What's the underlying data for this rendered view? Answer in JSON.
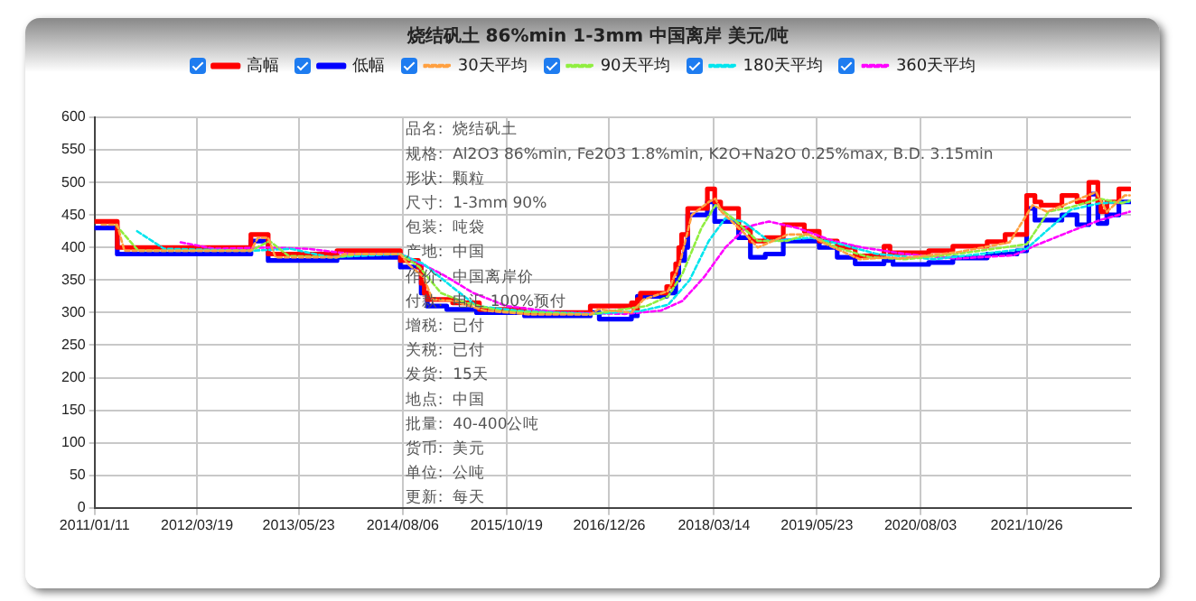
{
  "chart_data": {
    "type": "line",
    "title": "烧结矾土 86%min 1-3mm 中国离岸 美元/吨",
    "xlim": [
      "2011-01-11",
      "2023-01-10"
    ],
    "xticks": [
      {
        "value": "2011-01-11",
        "label": "2011/01/11"
      },
      {
        "value": "2012-03-19",
        "label": "2012/03/19"
      },
      {
        "value": "2013-05-23",
        "label": "2013/05/23"
      },
      {
        "value": "2014-08-06",
        "label": "2014/08/06"
      },
      {
        "value": "2015-10-19",
        "label": "2015/10/19"
      },
      {
        "value": "2016-12-26",
        "label": "2016/12/26"
      },
      {
        "value": "2018-03-14",
        "label": "2018/03/14"
      },
      {
        "value": "2019-05-23",
        "label": "2019/05/23"
      },
      {
        "value": "2020-08-03",
        "label": "2020/08/03"
      },
      {
        "value": "2021-10-26",
        "label": "2021/10/26"
      }
    ],
    "ylim": [
      0,
      600
    ],
    "yticks": [
      0,
      50,
      100,
      150,
      200,
      250,
      300,
      350,
      400,
      450,
      500,
      550,
      600
    ],
    "grid": true,
    "legend": "top",
    "marker": "none",
    "annotations": [
      "品名:  烧结矾土",
      "规格:  Al2O3 86%min, Fe2O3 1.8%min, K2O+Na2O 0.25%max, B.D. 3.15min",
      "形状:  颗粒",
      "尺寸:  1-3mm 90%",
      "包装:  吨袋",
      "产地:  中国",
      "作价:  中国离岸价",
      "付款:  电汇 100%预付",
      "增税:  已付",
      "关税:  已付",
      "发货:  15天",
      "地点:  中国",
      "批量:  40-400公吨",
      "货币:  美元",
      "单位:  公吨",
      "更新:  每天"
    ],
    "series": [
      {
        "name": "高幅",
        "type": "step",
        "color": "#ff0000",
        "line_style": "solid",
        "x": [
          "2011-01-11",
          "2011-04-17",
          "2012-11-02",
          "2013-01-14",
          "2013-11-01",
          "2014-07-27",
          "2014-10-11",
          "2014-10-23",
          "2014-11-05",
          "2014-11-18",
          "2015-03-05",
          "2015-06-26",
          "2016-01-03",
          "2016-10-07",
          "2017-03-30",
          "2017-04-10",
          "2017-04-24",
          "2017-05-07",
          "2017-08-26",
          "2017-09-20",
          "2017-10-03",
          "2017-10-16",
          "2017-10-28",
          "2017-11-23",
          "2018-02-14",
          "2018-03-17",
          "2018-04-11",
          "2018-06-26",
          "2018-08-15",
          "2018-10-17",
          "2019-01-01",
          "2019-03-31",
          "2019-06-02",
          "2019-08-17",
          "2019-11-01",
          "2020-03-02",
          "2020-03-27",
          "2020-09-07",
          "2020-12-18",
          "2021-05-12",
          "2021-07-27",
          "2021-10-26",
          "2021-11-30",
          "2021-12-26",
          "2022-03-24",
          "2022-05-27",
          "2022-07-16",
          "2022-08-23",
          "2022-09-05",
          "2022-09-30",
          "2022-11-20",
          "2023-01-05"
        ],
        "values": [
          440,
          400,
          420,
          390,
          395,
          380,
          370,
          345,
          330,
          320,
          315,
          305,
          300,
          310,
          315,
          305,
          320,
          330,
          340,
          360,
          375,
          400,
          420,
          460,
          490,
          470,
          460,
          430,
          410,
          415,
          435,
          425,
          410,
          400,
          387,
          402,
          392,
          395,
          402,
          409,
          420,
          480,
          470,
          465,
          480,
          470,
          500,
          470,
          455,
          470,
          490,
          490
        ]
      },
      {
        "name": "低幅",
        "type": "step",
        "color": "#0000ff",
        "line_style": "solid",
        "x": [
          "2011-01-11",
          "2011-04-17",
          "2012-11-02",
          "2013-01-14",
          "2013-11-01",
          "2014-07-27",
          "2014-10-23",
          "2014-11-18",
          "2015-02-08",
          "2015-06-14",
          "2016-01-03",
          "2016-10-07",
          "2016-11-14",
          "2017-03-30",
          "2017-04-24",
          "2017-08-26",
          "2017-10-03",
          "2017-10-16",
          "2017-11-10",
          "2017-11-23",
          "2018-02-14",
          "2018-03-17",
          "2018-06-26",
          "2018-08-15",
          "2018-10-17",
          "2019-01-01",
          "2019-06-02",
          "2019-08-17",
          "2019-11-01",
          "2020-03-02",
          "2020-04-09",
          "2020-09-07",
          "2020-12-18",
          "2021-05-12",
          "2021-09-15",
          "2021-10-26",
          "2021-11-30",
          "2022-03-24",
          "2022-05-27",
          "2022-07-16",
          "2022-08-23",
          "2022-09-30",
          "2022-11-20",
          "2023-01-05"
        ],
        "values": [
          430,
          390,
          410,
          380,
          385,
          370,
          330,
          310,
          305,
          300,
          295,
          300,
          290,
          295,
          325,
          330,
          350,
          380,
          400,
          450,
          470,
          440,
          415,
          385,
          390,
          410,
          400,
          385,
          375,
          380,
          374,
          377,
          384,
          390,
          395,
          460,
          442,
          450,
          435,
          482,
          437,
          450,
          470,
          470
        ]
      },
      {
        "name": "30天平均",
        "color": "#ffa040",
        "line_style": "dashed",
        "x": [
          "2011-02-10",
          "2011-04-17",
          "2011-05-17",
          "2012-11-02",
          "2012-12-02",
          "2013-01-14",
          "2013-02-14",
          "2013-11-01",
          "2013-12-01",
          "2014-07-27",
          "2014-08-27",
          "2014-11-01",
          "2014-12-10",
          "2015-03-05",
          "2015-07-20",
          "2016-02-01",
          "2016-10-07",
          "2016-11-10",
          "2017-03-30",
          "2017-05-20",
          "2017-09-01",
          "2017-10-20",
          "2017-12-10",
          "2018-02-20",
          "2018-03-20",
          "2018-04-15",
          "2018-07-20",
          "2018-09-15",
          "2019-01-20",
          "2019-04-20",
          "2019-07-01",
          "2019-11-20",
          "2020-04-01",
          "2020-05-01",
          "2021-01-10",
          "2021-08-15",
          "2021-11-20",
          "2022-01-20",
          "2022-04-20",
          "2022-08-15",
          "2022-09-30",
          "2022-12-15",
          "2023-01-05"
        ],
        "values": [
          435,
          435,
          395,
          395,
          415,
          415,
          385,
          385,
          390,
          390,
          375,
          355,
          320,
          318,
          303,
          297,
          297,
          305,
          300,
          320,
          333,
          375,
          450,
          470,
          475,
          455,
          422,
          400,
          420,
          420,
          405,
          382,
          385,
          383,
          393,
          408,
          465,
          455,
          468,
          485,
          455,
          480,
          480
        ]
      },
      {
        "name": "90天平均",
        "color": "#90ee40",
        "line_style": "dashed",
        "x": [
          "2011-04-10",
          "2011-07-15",
          "2012-11-02",
          "2013-01-20",
          "2013-04-10",
          "2013-11-01",
          "2014-02-01",
          "2014-07-27",
          "2014-10-15",
          "2015-01-15",
          "2015-05-01",
          "2015-10-01",
          "2016-10-07",
          "2017-01-15",
          "2017-06-01",
          "2017-09-01",
          "2017-11-01",
          "2018-01-20",
          "2018-03-20",
          "2018-06-01",
          "2018-09-15",
          "2019-01-15",
          "2019-04-15",
          "2019-08-15",
          "2020-01-01",
          "2020-06-01",
          "2021-01-01",
          "2021-10-26",
          "2022-01-26",
          "2022-05-01",
          "2022-09-01",
          "2022-12-01",
          "2023-01-05"
        ],
        "values": [
          435,
          395,
          395,
          410,
          387,
          385,
          390,
          390,
          370,
          330,
          315,
          302,
          297,
          303,
          310,
          325,
          360,
          430,
          465,
          445,
          410,
          410,
          420,
          400,
          385,
          382,
          390,
          405,
          455,
          462,
          475,
          468,
          472
        ]
      },
      {
        "name": "180天平均",
        "color": "#00e5ee",
        "line_style": "dashed",
        "x": [
          "2011-07-10",
          "2011-11-01",
          "2012-11-02",
          "2013-04-20",
          "2013-10-01",
          "2014-07-27",
          "2014-11-01",
          "2015-03-01",
          "2015-06-15",
          "2016-01-01",
          "2016-10-07",
          "2017-05-01",
          "2017-09-01",
          "2017-12-01",
          "2018-02-20",
          "2018-05-01",
          "2018-07-15",
          "2018-11-01",
          "2019-05-01",
          "2019-09-01",
          "2020-02-01",
          "2020-10-01",
          "2021-06-01",
          "2021-10-26",
          "2022-01-01",
          "2022-05-01",
          "2022-09-01",
          "2023-01-05"
        ],
        "values": [
          425,
          398,
          395,
          398,
          385,
          390,
          375,
          340,
          310,
          302,
          298,
          302,
          312,
          350,
          410,
          445,
          440,
          410,
          415,
          405,
          390,
          382,
          392,
          398,
          420,
          458,
          468,
          470
        ]
      },
      {
        "name": "360天平均",
        "color": "#ff00ff",
        "line_style": "dashed",
        "x": [
          "2012-01-10",
          "2012-06-01",
          "2013-01-10",
          "2013-07-01",
          "2014-01-01",
          "2014-07-27",
          "2015-01-15",
          "2015-06-01",
          "2015-10-19",
          "2016-06-01",
          "2017-03-01",
          "2017-08-01",
          "2017-11-01",
          "2018-02-01",
          "2018-05-01",
          "2018-08-01",
          "2018-11-01",
          "2019-03-01",
          "2019-08-01",
          "2019-12-01",
          "2020-06-01",
          "2021-01-01",
          "2021-09-01",
          "2021-12-01",
          "2022-05-01",
          "2022-09-01",
          "2023-01-05"
        ],
        "values": [
          408,
          398,
          400,
          398,
          390,
          390,
          360,
          330,
          310,
          300,
          298,
          303,
          318,
          355,
          400,
          432,
          440,
          430,
          410,
          400,
          390,
          383,
          388,
          403,
          425,
          442,
          455
        ]
      }
    ]
  }
}
